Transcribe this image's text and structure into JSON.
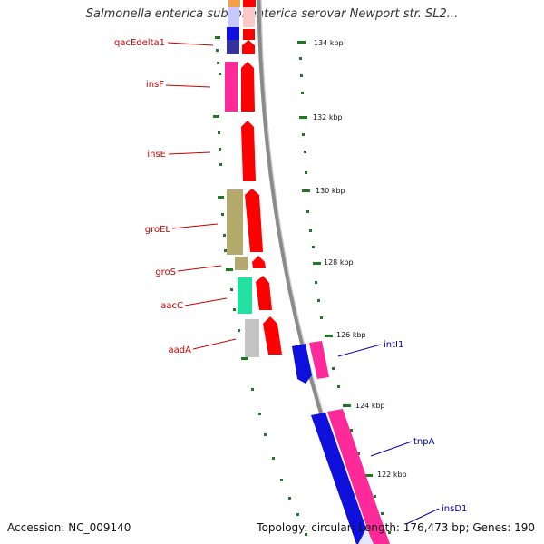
{
  "title": "Salmonella enterica subsp. enterica serovar Newport str. SL2...",
  "footer": {
    "accession": "Accession: NC_009140",
    "summary": "Topology: circular; Length: 176,473 bp; Genes: 190"
  },
  "colors": {
    "forward_label": "#cc0000",
    "reverse_label": "#0000aa",
    "backbone": "#8a8a8a",
    "ticks": "#1e7a1e",
    "forward_cds": "#ff0000",
    "reverse_cds": "#1010dd",
    "feature_pink": "#ff2a9a"
  },
  "ticks": [
    {
      "label": "134 kbp"
    },
    {
      "label": "132 kbp"
    },
    {
      "label": "130 kbp"
    },
    {
      "label": "128 kbp"
    },
    {
      "label": "126 kbp"
    },
    {
      "label": "124 kbp"
    },
    {
      "label": "122 kbp"
    }
  ],
  "genes": [
    {
      "name": "qacEdelta1",
      "strand": "forward"
    },
    {
      "name": "insF",
      "strand": "forward"
    },
    {
      "name": "insE",
      "strand": "forward"
    },
    {
      "name": "groEL",
      "strand": "forward"
    },
    {
      "name": "groS",
      "strand": "forward"
    },
    {
      "name": "aacC",
      "strand": "forward"
    },
    {
      "name": "aadA",
      "strand": "forward"
    },
    {
      "name": "intI1",
      "strand": "reverse"
    },
    {
      "name": "tnpA",
      "strand": "reverse"
    },
    {
      "name": "insD1",
      "strand": "reverse"
    }
  ]
}
